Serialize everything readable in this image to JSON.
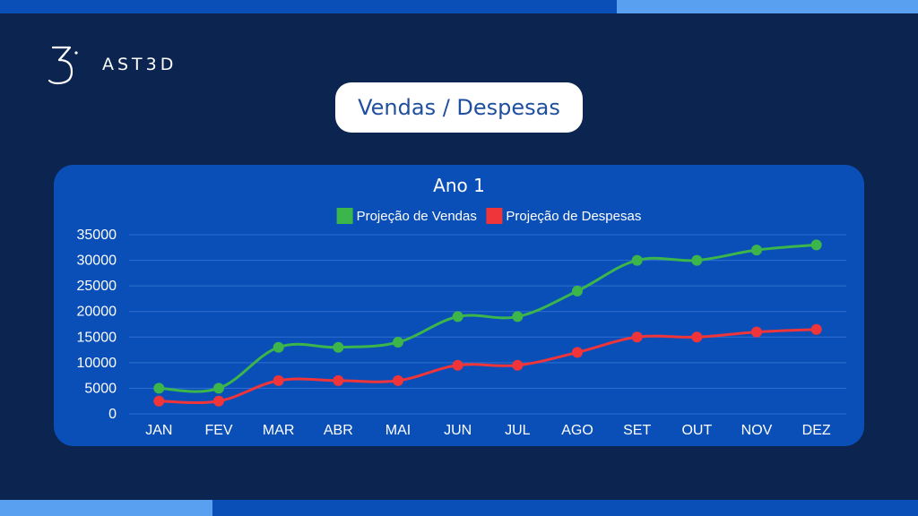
{
  "brand": {
    "name": "AST3D"
  },
  "slide": {
    "title": "Vendas / Despesas"
  },
  "chart_data": {
    "type": "line",
    "title": "Ano 1",
    "xlabel": "",
    "ylabel": "",
    "categories": [
      "JAN",
      "FEV",
      "MAR",
      "ABR",
      "MAI",
      "JUN",
      "JUL",
      "AGO",
      "SET",
      "OUT",
      "NOV",
      "DEZ"
    ],
    "ylim": [
      0,
      35000
    ],
    "yticks": [
      0,
      5000,
      10000,
      15000,
      20000,
      25000,
      30000,
      35000
    ],
    "grid": true,
    "legend_position": "top-center",
    "series": [
      {
        "name": "Projeção de Vendas",
        "color": "#3cb54a",
        "values": [
          5000,
          5000,
          13000,
          13000,
          14000,
          19000,
          19000,
          24000,
          30000,
          30000,
          32000,
          33000
        ]
      },
      {
        "name": "Projeção de Despesas",
        "color": "#f0353a",
        "values": [
          2500,
          2500,
          6500,
          6500,
          6500,
          9500,
          9500,
          12000,
          15000,
          15000,
          16000,
          16500
        ]
      }
    ]
  },
  "colors": {
    "background": "#0b2550",
    "card": "#0a4fb8",
    "accent": "#5aa0f0",
    "title_text": "#1f4f9e"
  }
}
